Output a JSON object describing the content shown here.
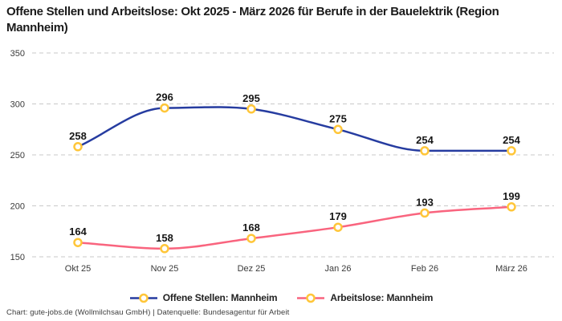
{
  "header": {
    "title": "Offene Stellen und Arbeitslose: Okt 2025 - März 2026 für Berufe in der Bauelektrik (Region Mannheim)"
  },
  "chart_data": {
    "type": "line",
    "title": "Offene Stellen und Arbeitslose: Okt 2025 - März 2026 für Berufe in der Bauelektrik (Region Mannheim)",
    "categories": [
      "Okt 25",
      "Nov 25",
      "Dez 25",
      "Jan 26",
      "Feb 26",
      "März 26"
    ],
    "series": [
      {
        "name": "Offene Stellen: Mannheim",
        "values": [
          258,
          296,
          295,
          275,
          254,
          254
        ],
        "color": "#263CA0"
      },
      {
        "name": "Arbeitslose: Mannheim",
        "values": [
          164,
          158,
          168,
          179,
          193,
          199
        ],
        "color": "#F9647E"
      }
    ],
    "xlabel": "",
    "ylabel": "",
    "ylim": [
      150,
      350
    ],
    "yticks": [
      150,
      200,
      250,
      300,
      350
    ],
    "grid": "horizontal-dashed",
    "legend_position": "bottom",
    "data_labels": true,
    "marker": {
      "shape": "circle",
      "stroke": "#FFC639",
      "fill": "#FFFFFF"
    }
  },
  "style": {
    "gridline_color": "#C9C9C9",
    "tick_label_color": "#3a3a3a",
    "data_label_color": "#161616",
    "title_color": "#1a1a1a"
  },
  "footer": {
    "credit": "Chart: gute-jobs.de (Wollmilchsau GmbH) | Datenquelle: Bundesagentur für Arbeit"
  }
}
